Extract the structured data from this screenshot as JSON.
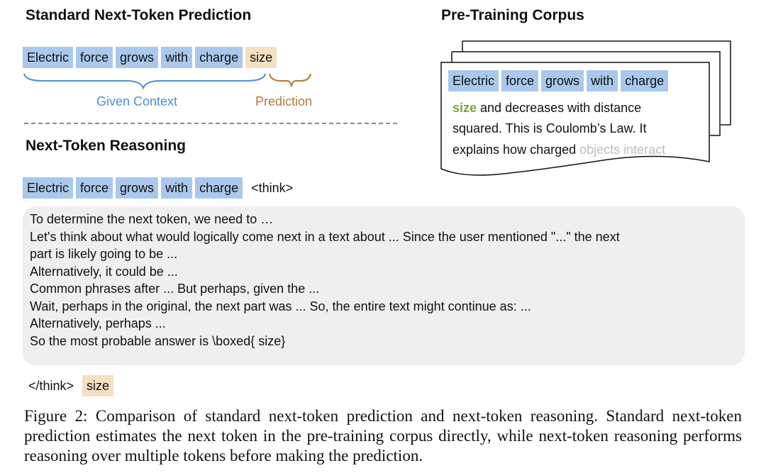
{
  "standard": {
    "title": "Standard Next-Token Prediction",
    "context_tokens": [
      "Electric",
      "force",
      "grows",
      "with",
      "charge"
    ],
    "prediction_token": "size",
    "context_label": "Given Context",
    "prediction_label": "Prediction"
  },
  "corpus": {
    "title": "Pre-Training Corpus",
    "tokens": [
      "Electric",
      "force",
      "grows",
      "with",
      "charge"
    ],
    "highlight_word": "size",
    "line1_rest": " and decreases with distance",
    "line2": "squared. This is Coulomb’s Law. It",
    "line3_main": "explains how charged ",
    "line3_faded": "objects interact"
  },
  "reasoning": {
    "title": "Next-Token Reasoning",
    "context_tokens": [
      "Electric",
      "force",
      "grows",
      "with",
      "charge"
    ],
    "think_open": "<think>",
    "lines": [
      "To determine the next token, we need to …",
      "Let's think about what would logically come next in a text about ... Since the user mentioned \"...\" the next",
      "part is likely going to be ...",
      "Alternatively, it could be ...",
      "Common phrases after ... But perhaps, given the ...",
      "Wait, perhaps in the original, the next part was ... So, the entire text might continue as: ...",
      "Alternatively, perhaps ...",
      "So the most probable answer is \\boxed{ size}"
    ],
    "think_close": "</think>",
    "answer_token": "size"
  },
  "colors": {
    "token_blue": "#a9c8ec",
    "token_orange": "#f6dfc2",
    "context_label": "#4f8fd6",
    "prediction_label": "#b37a35",
    "corpus_keyword": "#7ca43c"
  },
  "caption": "Figure 2: Comparison of standard next-token prediction and next-token reasoning. Standard next-token prediction estimates the next token in the pre-training corpus directly, while next-token reasoning performs reasoning over multiple tokens before making the prediction."
}
